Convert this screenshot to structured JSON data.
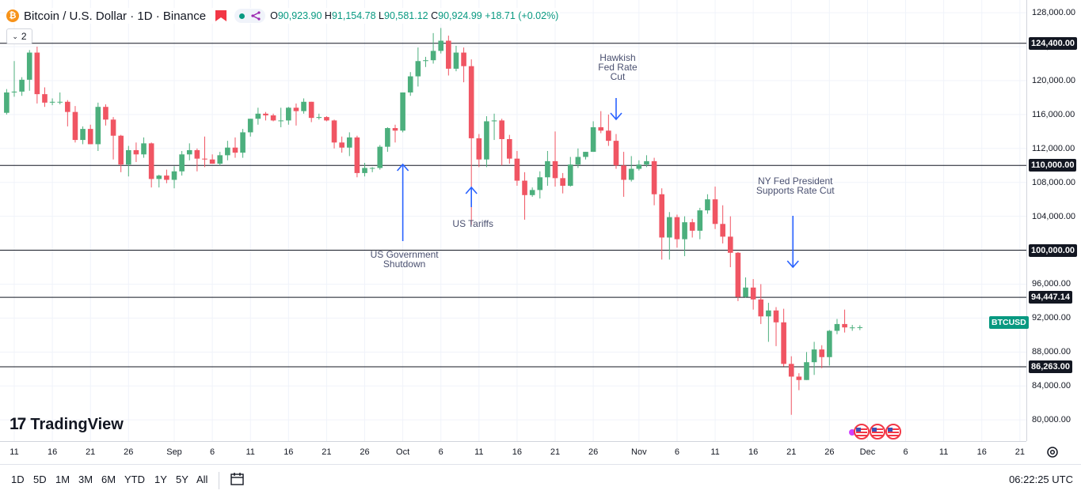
{
  "header": {
    "title": "Bitcoin / U.S. Dollar · 1D · Binance",
    "open_label": "O",
    "open": "90,923.90",
    "high_label": "H",
    "high": "91,154.78",
    "low_label": "L",
    "low": "90,581.12",
    "close_label": "C",
    "close": "90,924.99",
    "change": "+18.71 (+0.02%)",
    "indicator_count": "2"
  },
  "logo_text": "TradingView",
  "ticker_tag": "BTCUSD",
  "toolbar": {
    "ranges": [
      "1D",
      "5D",
      "1M",
      "3M",
      "6M",
      "YTD",
      "1Y",
      "5Y",
      "All"
    ],
    "clock": "06:22:25 UTC"
  },
  "colors": {
    "up": "#089981",
    "up_fill": "#4caf7d",
    "down": "#f23645",
    "down_fill": "#f05563",
    "level_line": "#131722",
    "annotation_arrow": "#2962ff"
  },
  "chart_data": {
    "type": "candlestick",
    "symbol": "BTCUSD",
    "ylim": [
      77500,
      129500
    ],
    "y_ticks": [
      80000,
      84000,
      88000,
      92000,
      96000,
      100000,
      104000,
      108000,
      112000,
      116000,
      120000,
      124000,
      128000
    ],
    "y_tick_labels": [
      "80,000.00",
      "84,000.00",
      "88,000.00",
      "92,000.00",
      "96,000.00",
      "100,000.00",
      "104,000.00",
      "108,000.00",
      "112,000.00",
      "116,000.00",
      "120,000.00",
      "124,000.00",
      "128,000.00"
    ],
    "x_tick_labels": [
      "11",
      "16",
      "21",
      "26",
      "Sep",
      "6",
      "11",
      "16",
      "21",
      "26",
      "Oct",
      "6",
      "11",
      "16",
      "21",
      "26",
      "Nov",
      "6",
      "11",
      "16",
      "21",
      "26",
      "Dec",
      "6",
      "11",
      "16",
      "21"
    ],
    "x_tick_dates": [
      "2025-08-11",
      "2025-08-16",
      "2025-08-21",
      "2025-08-26",
      "2025-09-01",
      "2025-09-06",
      "2025-09-11",
      "2025-09-16",
      "2025-09-21",
      "2025-09-26",
      "2025-10-01",
      "2025-10-06",
      "2025-10-11",
      "2025-10-16",
      "2025-10-21",
      "2025-10-26",
      "2025-11-01",
      "2025-11-06",
      "2025-11-11",
      "2025-11-16",
      "2025-11-21",
      "2025-11-26",
      "2025-12-01",
      "2025-12-06",
      "2025-12-11",
      "2025-12-16",
      "2025-12-21"
    ],
    "levels": [
      {
        "value": 124400,
        "label": "124,400.00"
      },
      {
        "value": 110000,
        "label": "110,000.00"
      },
      {
        "value": 100000,
        "label": "100,000.00"
      },
      {
        "value": 94447.14,
        "label": "94,447.14"
      },
      {
        "value": 86263,
        "label": "86,263.00"
      }
    ],
    "annotations": [
      {
        "text": "US Government\nShutdown",
        "date": "2025-10-01",
        "direction": "up"
      },
      {
        "text": "US Tariffs",
        "date": "2025-10-10",
        "direction": "up"
      },
      {
        "text": "Hawkish\nFed Rate\nCut",
        "date": "2025-10-29",
        "direction": "down"
      },
      {
        "text": "NY Fed President\nSupports Rate Cut",
        "date": "2025-11-21",
        "direction": "down"
      }
    ],
    "candles": [
      [
        "2025-08-10",
        116200,
        119000,
        116000,
        118600
      ],
      [
        "2025-08-11",
        118600,
        122300,
        118100,
        118700
      ],
      [
        "2025-08-12",
        118700,
        120400,
        118200,
        120100
      ],
      [
        "2025-08-13",
        120100,
        123600,
        118800,
        123300
      ],
      [
        "2025-08-14",
        123300,
        124000,
        117300,
        118400
      ],
      [
        "2025-08-15",
        118400,
        119200,
        116900,
        117400
      ],
      [
        "2025-08-16",
        117400,
        117900,
        117100,
        117500
      ],
      [
        "2025-08-17",
        117500,
        118600,
        117200,
        117500
      ],
      [
        "2025-08-18",
        117500,
        117700,
        114600,
        116300
      ],
      [
        "2025-08-19",
        116300,
        117000,
        112700,
        113000
      ],
      [
        "2025-08-20",
        113000,
        114600,
        112500,
        114300
      ],
      [
        "2025-08-21",
        114300,
        114800,
        112500,
        112500
      ],
      [
        "2025-08-22",
        112500,
        117400,
        111700,
        116900
      ],
      [
        "2025-08-23",
        116900,
        117200,
        114700,
        115400
      ],
      [
        "2025-08-24",
        115400,
        115700,
        110700,
        113500
      ],
      [
        "2025-08-25",
        113500,
        113600,
        109200,
        110100
      ],
      [
        "2025-08-26",
        110100,
        112300,
        108700,
        111800
      ],
      [
        "2025-08-27",
        111800,
        112700,
        110400,
        111300
      ],
      [
        "2025-08-28",
        111300,
        113300,
        110900,
        112600
      ],
      [
        "2025-08-29",
        112600,
        112700,
        107400,
        108400
      ],
      [
        "2025-08-30",
        108400,
        108900,
        107400,
        108800
      ],
      [
        "2025-08-31",
        108800,
        109500,
        107900,
        108300
      ],
      [
        "2025-09-01",
        108300,
        109900,
        107300,
        109300
      ],
      [
        "2025-09-02",
        109300,
        111700,
        108800,
        111300
      ],
      [
        "2025-09-03",
        111300,
        112600,
        110600,
        111800
      ],
      [
        "2025-09-04",
        111800,
        112000,
        109300,
        110800
      ],
      [
        "2025-09-05",
        110800,
        113400,
        109800,
        110700
      ],
      [
        "2025-09-06",
        110700,
        111300,
        110200,
        110200
      ],
      [
        "2025-09-07",
        110200,
        111600,
        110000,
        111200
      ],
      [
        "2025-09-08",
        111200,
        112900,
        110600,
        112100
      ],
      [
        "2025-09-09",
        112100,
        113300,
        110900,
        111500
      ],
      [
        "2025-09-10",
        111500,
        114300,
        110900,
        113900
      ],
      [
        "2025-09-11",
        113900,
        115500,
        113400,
        115500
      ],
      [
        "2025-09-12",
        115500,
        116800,
        114800,
        116100
      ],
      [
        "2025-09-13",
        116100,
        116300,
        115300,
        115900
      ],
      [
        "2025-09-14",
        115900,
        116100,
        115200,
        115300
      ],
      [
        "2025-09-15",
        115300,
        116800,
        114500,
        115300
      ],
      [
        "2025-09-16",
        115300,
        116900,
        114800,
        116800
      ],
      [
        "2025-09-17",
        116800,
        117300,
        114700,
        116400
      ],
      [
        "2025-09-18",
        116400,
        117900,
        116100,
        117500
      ],
      [
        "2025-09-19",
        117500,
        117500,
        115100,
        115600
      ],
      [
        "2025-09-20",
        115600,
        116100,
        115400,
        115700
      ],
      [
        "2025-09-21",
        115700,
        115800,
        115200,
        115300
      ],
      [
        "2025-09-22",
        115300,
        115400,
        112000,
        112700
      ],
      [
        "2025-09-23",
        112700,
        113400,
        111500,
        112100
      ],
      [
        "2025-09-24",
        112100,
        113900,
        111100,
        113300
      ],
      [
        "2025-09-25",
        113300,
        113500,
        108600,
        109100
      ],
      [
        "2025-09-26",
        109100,
        110300,
        108700,
        109700
      ],
      [
        "2025-09-27",
        109700,
        109800,
        109200,
        109700
      ],
      [
        "2025-09-28",
        109700,
        112400,
        109500,
        112200
      ],
      [
        "2025-09-29",
        112200,
        114500,
        111600,
        114400
      ],
      [
        "2025-09-30",
        114400,
        114800,
        112700,
        114100
      ],
      [
        "2025-10-01",
        114100,
        118600,
        113900,
        118600
      ],
      [
        "2025-10-02",
        118600,
        121000,
        118200,
        120500
      ],
      [
        "2025-10-03",
        120500,
        123900,
        119300,
        122300
      ],
      [
        "2025-10-04",
        122300,
        122800,
        121600,
        122400
      ],
      [
        "2025-10-05",
        122400,
        125600,
        122000,
        123500
      ],
      [
        "2025-10-06",
        123500,
        126200,
        123200,
        124700
      ],
      [
        "2025-10-07",
        124700,
        125300,
        120600,
        121400
      ],
      [
        "2025-10-08",
        121400,
        124100,
        121100,
        123300
      ],
      [
        "2025-10-09",
        123300,
        123900,
        119800,
        121700
      ],
      [
        "2025-10-10",
        121700,
        122500,
        103000,
        113200
      ],
      [
        "2025-10-11",
        113200,
        113700,
        109800,
        110700
      ],
      [
        "2025-10-12",
        110700,
        115800,
        109800,
        115200
      ],
      [
        "2025-10-13",
        115200,
        116100,
        113000,
        115300
      ],
      [
        "2025-10-14",
        115300,
        115500,
        110000,
        113100
      ],
      [
        "2025-10-15",
        113100,
        113600,
        110200,
        110800
      ],
      [
        "2025-10-16",
        110800,
        111700,
        107600,
        108200
      ],
      [
        "2025-10-17",
        108200,
        109200,
        103600,
        106500
      ],
      [
        "2025-10-18",
        106500,
        107400,
        106300,
        107100
      ],
      [
        "2025-10-19",
        107100,
        109300,
        106100,
        108600
      ],
      [
        "2025-10-20",
        108600,
        111700,
        107600,
        110500
      ],
      [
        "2025-10-21",
        110500,
        114000,
        107500,
        108500
      ],
      [
        "2025-10-22",
        108500,
        109100,
        106700,
        107600
      ],
      [
        "2025-10-23",
        107600,
        111000,
        107500,
        110100
      ],
      [
        "2025-10-24",
        110100,
        112000,
        109700,
        111000
      ],
      [
        "2025-10-25",
        111000,
        111600,
        110700,
        111600
      ],
      [
        "2025-10-26",
        111600,
        115200,
        111600,
        114500
      ],
      [
        "2025-10-27",
        114500,
        116400,
        113800,
        114100
      ],
      [
        "2025-10-28",
        114100,
        116000,
        112300,
        112900
      ],
      [
        "2025-10-29",
        112900,
        113700,
        109600,
        110000
      ],
      [
        "2025-10-30",
        110000,
        111600,
        106300,
        108300
      ],
      [
        "2025-10-31",
        108300,
        111100,
        108100,
        109600
      ],
      [
        "2025-11-01",
        109600,
        110600,
        109400,
        110100
      ],
      [
        "2025-11-02",
        110100,
        111200,
        109800,
        110500
      ],
      [
        "2025-11-03",
        110500,
        110900,
        105300,
        106600
      ],
      [
        "2025-11-04",
        106600,
        107300,
        98900,
        101500
      ],
      [
        "2025-11-05",
        101500,
        104500,
        98900,
        103900
      ],
      [
        "2025-11-06",
        103900,
        104200,
        100300,
        101300
      ],
      [
        "2025-11-07",
        101300,
        104000,
        99300,
        103300
      ],
      [
        "2025-11-08",
        103300,
        103700,
        101500,
        102300
      ],
      [
        "2025-11-09",
        102300,
        105000,
        101300,
        104700
      ],
      [
        "2025-11-10",
        104700,
        106600,
        104300,
        106000
      ],
      [
        "2025-11-11",
        106000,
        107500,
        102500,
        103100
      ],
      [
        "2025-11-12",
        103100,
        105300,
        100800,
        101600
      ],
      [
        "2025-11-13",
        101600,
        104000,
        98000,
        99700
      ],
      [
        "2025-11-14",
        99700,
        99800,
        94000,
        94500
      ],
      [
        "2025-11-15",
        94500,
        96800,
        94400,
        95600
      ],
      [
        "2025-11-16",
        95600,
        96600,
        93000,
        94200
      ],
      [
        "2025-11-17",
        94200,
        96000,
        91300,
        92200
      ],
      [
        "2025-11-18",
        92200,
        93800,
        89200,
        92900
      ],
      [
        "2025-11-19",
        92900,
        93300,
        88700,
        91500
      ],
      [
        "2025-11-20",
        91500,
        93100,
        86300,
        86600
      ],
      [
        "2025-11-21",
        86600,
        87500,
        80600,
        85100
      ],
      [
        "2025-11-22",
        85100,
        85500,
        83500,
        84700
      ],
      [
        "2025-11-23",
        84700,
        88000,
        84700,
        86800
      ],
      [
        "2025-11-24",
        86800,
        89200,
        85300,
        88300
      ],
      [
        "2025-11-25",
        88300,
        88800,
        86100,
        87400
      ],
      [
        "2025-11-26",
        87400,
        90600,
        86400,
        90500
      ],
      [
        "2025-11-27",
        90500,
        91900,
        90100,
        91300
      ],
      [
        "2025-11-28",
        91300,
        93000,
        90300,
        90900
      ],
      [
        "2025-11-29",
        90900,
        91200,
        90500,
        90900
      ],
      [
        "2025-11-30",
        90923.9,
        91154.78,
        90581.12,
        90924.99
      ]
    ]
  }
}
